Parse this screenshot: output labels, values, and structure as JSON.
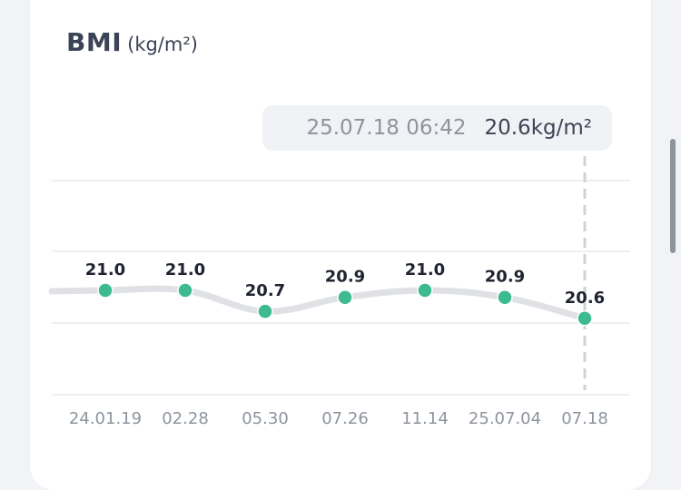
{
  "header": {
    "title": "BMI",
    "unit": "(kg/m²)"
  },
  "tooltip": {
    "datetime": "25.07.18 06:42",
    "value": "20.6kg/m²"
  },
  "colors": {
    "point": "#3dba8f",
    "line": "#dfe1e5",
    "grid": "#e9eaed",
    "crosshair": "#cfd2d7",
    "label": "#1f2430",
    "tick": "#8d949e"
  },
  "chart_data": {
    "type": "line",
    "categories": [
      "24.01.19",
      "02.28",
      "05.30",
      "07.26",
      "11.14",
      "25.07.04",
      "07.18"
    ],
    "values": [
      21.0,
      21.0,
      20.7,
      20.9,
      21.0,
      20.9,
      20.6
    ],
    "value_labels": [
      "21.0",
      "21.0",
      "20.7",
      "20.9",
      "21.0",
      "20.9",
      "20.6"
    ],
    "grid": true,
    "selected_index": 6
  }
}
